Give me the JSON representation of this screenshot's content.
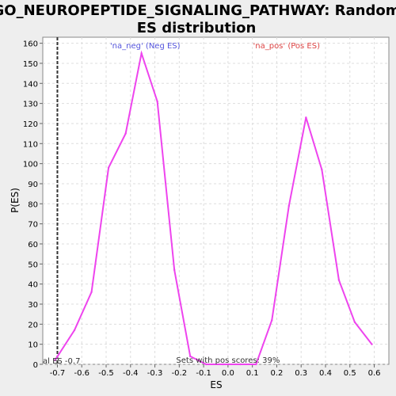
{
  "chart_data": {
    "type": "line",
    "title_lines": [
      "GO_NEUROPEPTIDE_SIGNALING_PATHWAY: Random",
      "ES distribution"
    ],
    "xlabel": "ES",
    "ylabel": "P(ES)",
    "xlim": [
      -0.76,
      0.66
    ],
    "ylim": [
      0,
      163
    ],
    "xticks": [
      -0.7,
      -0.6,
      -0.5,
      -0.4,
      -0.3,
      -0.2,
      -0.1,
      0.0,
      0.1,
      0.2,
      0.3,
      0.4,
      0.5,
      0.6
    ],
    "xtick_labels": [
      "-0.7",
      "-0.6",
      "-0.5",
      "-0.4",
      "-0.3",
      "-0.2",
      "-0.1",
      "0.0",
      "0.1",
      "0.2",
      "0.3",
      "0.4",
      "0.5",
      "0.6"
    ],
    "yticks": [
      0,
      10,
      20,
      30,
      40,
      50,
      60,
      70,
      80,
      90,
      100,
      110,
      120,
      130,
      140,
      150,
      160
    ],
    "grid": true,
    "line_color": "#ee44ee",
    "series": [
      {
        "x": [
          -0.71,
          -0.63,
          -0.56,
          -0.49,
          -0.42,
          -0.355,
          -0.29,
          -0.22,
          -0.155,
          -0.09,
          -0.02,
          0.05,
          0.115,
          0.18,
          0.25,
          0.32,
          0.385,
          0.455,
          0.52,
          0.59
        ],
        "y": [
          2,
          17,
          36,
          98,
          115,
          155,
          131,
          47,
          4,
          0,
          0,
          0,
          0,
          22,
          79,
          123,
          97,
          42,
          21,
          10
        ]
      }
    ],
    "actual_es": {
      "x": -0.7,
      "label": "al ES -0.7",
      "line_color": "#333333"
    },
    "annotations": {
      "neg": {
        "text": "'na_neg' (Neg ES)",
        "color": "#5555dd",
        "x": -0.34
      },
      "pos": {
        "text": "'na_pos' (Pos ES)",
        "color": "#dd4444",
        "x": 0.24
      },
      "bottom": {
        "text": "Sets with pos scores: 39%",
        "color": "#333333",
        "x": 0.0
      }
    }
  }
}
